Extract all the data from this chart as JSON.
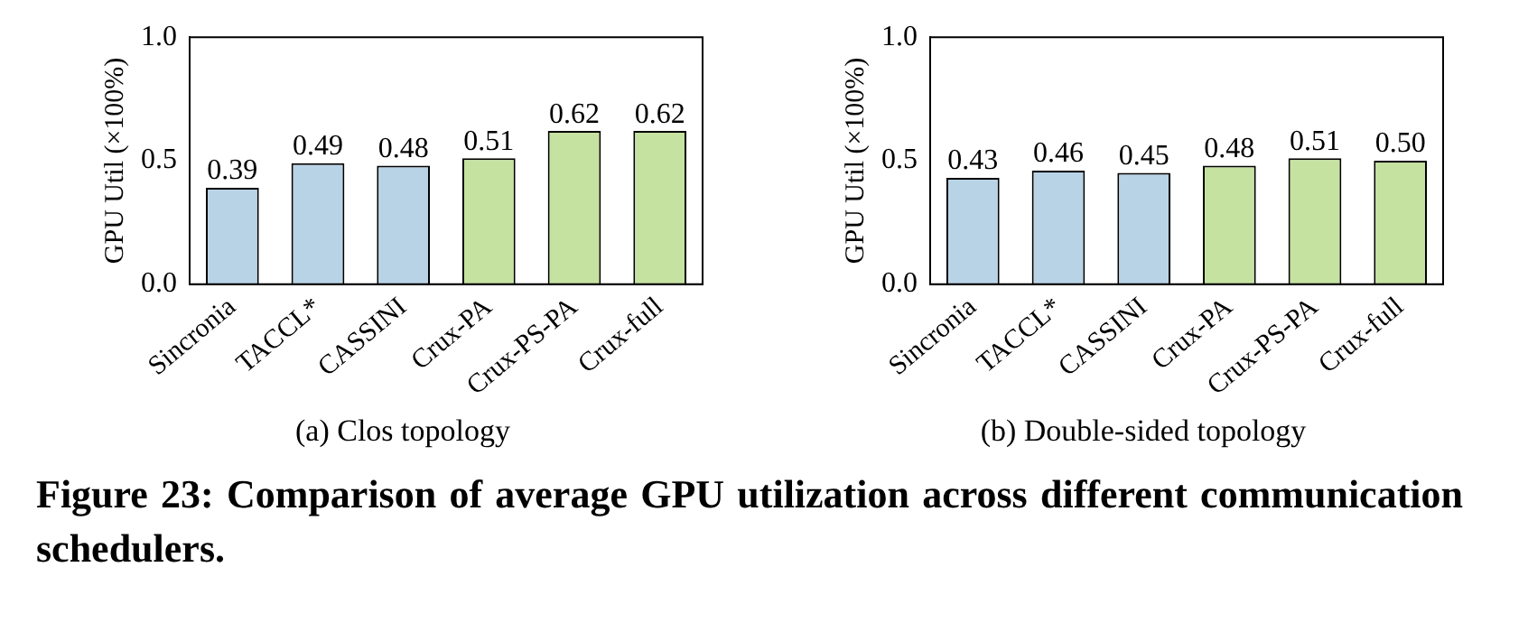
{
  "chart_data": [
    {
      "type": "bar",
      "ylabel": "GPU Util (×100%)",
      "categories": [
        "Sincronia",
        "TACCL*",
        "CASSINI",
        "Crux-PA",
        "Crux-PS-PA",
        "Crux-full"
      ],
      "values": [
        0.39,
        0.49,
        0.48,
        0.51,
        0.62,
        0.62
      ],
      "value_labels": [
        "0.39",
        "0.49",
        "0.48",
        "0.51",
        "0.62",
        "0.62"
      ],
      "colors": [
        "#b9d3e6",
        "#b9d3e6",
        "#b9d3e6",
        "#c6e2a1",
        "#c6e2a1",
        "#c6e2a1"
      ],
      "ylim": [
        0,
        1
      ],
      "yticks": [
        {
          "value": 0,
          "label": "0.0"
        },
        {
          "value": 0.5,
          "label": "0.5"
        },
        {
          "value": 1,
          "label": "1.0"
        }
      ],
      "annotations": [
        "(a)  Clos topology",
        "Figure 23: Comparison of average GPU utilization across different communication schedulers."
      ]
    },
    {
      "type": "bar",
      "ylabel": "GPU Util (×100%)",
      "categories": [
        "Sincronia",
        "TACCL*",
        "CASSINI",
        "Crux-PA",
        "Crux-PS-PA",
        "Crux-full"
      ],
      "values": [
        0.43,
        0.46,
        0.45,
        0.48,
        0.51,
        0.5
      ],
      "value_labels": [
        "0.43",
        "0.46",
        "0.45",
        "0.48",
        "0.51",
        "0.50"
      ],
      "colors": [
        "#b9d3e6",
        "#b9d3e6",
        "#b9d3e6",
        "#c6e2a1",
        "#c6e2a1",
        "#c6e2a1"
      ],
      "ylim": [
        0,
        1
      ],
      "yticks": [
        {
          "value": 0,
          "label": "0.0"
        },
        {
          "value": 0.5,
          "label": "0.5"
        },
        {
          "value": 1,
          "label": "1.0"
        }
      ],
      "annotations": [
        "(b)  Double-sided topology"
      ]
    }
  ]
}
